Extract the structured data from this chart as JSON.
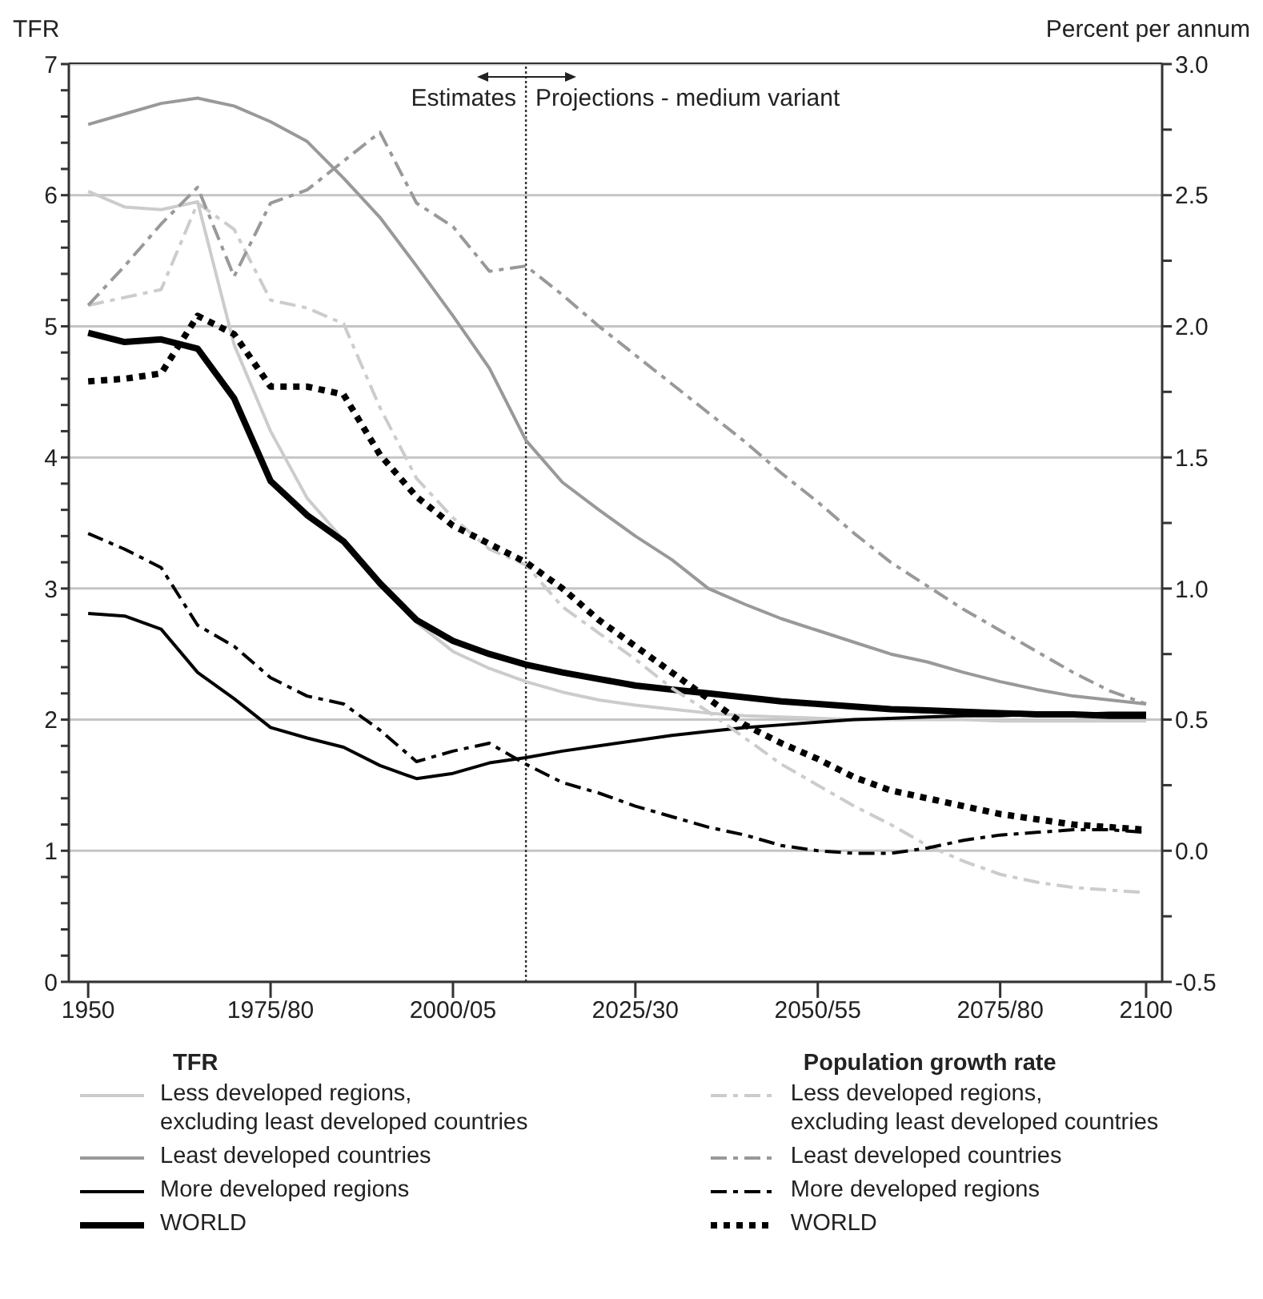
{
  "chart_data": {
    "type": "line",
    "ylabel": "TFR",
    "y2label": "Percent per annum",
    "legend_title": [
      "TFR",
      "Population growth rate"
    ],
    "annotations": [
      "Estimates",
      "Projections - medium variant"
    ],
    "categories": [
      "1950",
      null,
      null,
      null,
      null,
      "1975/80",
      null,
      null,
      null,
      null,
      "2000/05",
      null,
      null,
      null,
      null,
      "2025/30",
      null,
      null,
      null,
      null,
      "2050/55",
      null,
      null,
      null,
      null,
      "2075/80",
      null,
      null,
      null,
      "2100"
    ],
    "ylim": [
      0,
      7
    ],
    "yticks": [
      0,
      {
        "value": 0.2,
        "label": null
      },
      {
        "value": 0.4,
        "label": null
      },
      {
        "value": 0.6,
        "label": null
      },
      {
        "value": 0.8,
        "label": null
      },
      1,
      {
        "value": 1.2,
        "label": null
      },
      {
        "value": 1.4,
        "label": null
      },
      {
        "value": 1.6,
        "label": null
      },
      {
        "value": 1.8,
        "label": null
      },
      2,
      {
        "value": 2.2,
        "label": null
      },
      {
        "value": 2.4,
        "label": null
      },
      {
        "value": 2.6,
        "label": null
      },
      {
        "value": 2.8,
        "label": null
      },
      3,
      {
        "value": 3.2,
        "label": null
      },
      {
        "value": 3.4,
        "label": null
      },
      {
        "value": 3.6,
        "label": null
      },
      {
        "value": 3.8,
        "label": null
      },
      4,
      {
        "value": 4.2,
        "label": null
      },
      {
        "value": 4.4,
        "label": null
      },
      {
        "value": 4.6,
        "label": null
      },
      {
        "value": 4.8,
        "label": null
      },
      5,
      {
        "value": 5.2,
        "label": null
      },
      {
        "value": 5.4,
        "label": null
      },
      {
        "value": 5.6,
        "label": null
      },
      {
        "value": 5.8,
        "label": null
      },
      6,
      {
        "value": 6.2,
        "label": null
      },
      {
        "value": 6.4,
        "label": null
      },
      {
        "value": 6.6,
        "label": null
      },
      {
        "value": 6.8,
        "label": null
      },
      7
    ],
    "y2lim": [
      -0.5,
      3
    ],
    "y2ticks": [
      -0.5,
      {
        "value": -0.25,
        "label": null
      },
      {
        "value": 0,
        "label": "0.0"
      },
      {
        "value": 0.25,
        "label": null
      },
      0.5,
      {
        "value": 0.75,
        "label": null
      },
      {
        "value": 1,
        "label": "1.0"
      },
      {
        "value": 1.25,
        "label": null
      },
      1.5,
      {
        "value": 1.75,
        "label": null
      },
      {
        "value": 2,
        "label": "2.0"
      },
      {
        "value": 2.25,
        "label": null
      },
      2.5,
      {
        "value": 2.75,
        "label": null
      },
      {
        "value": 3,
        "label": "3.0"
      }
    ],
    "grid": "y",
    "legend": "bottom",
    "series": [
      {
        "name": "Less developed regions,\nexcluding least developed countries",
        "color": "#cccccc",
        "axis": "y",
        "line_style": "solid",
        "values": [
          6.03,
          5.91,
          5.89,
          5.95,
          4.86,
          4.2,
          3.69,
          3.37,
          3.04,
          2.74,
          2.52,
          2.39,
          2.29,
          2.21,
          2.15,
          2.11,
          2.08,
          2.05,
          2.03,
          2.02,
          2.01,
          2.0,
          2.0,
          2.0,
          2.0,
          1.99,
          1.99,
          1.99,
          1.99,
          1.99
        ]
      },
      {
        "name": "Least developed countries",
        "color": "#999999",
        "axis": "y",
        "line_style": "solid",
        "values": [
          6.54,
          6.62,
          6.7,
          6.74,
          6.68,
          6.56,
          6.41,
          6.13,
          5.83,
          5.46,
          5.08,
          4.68,
          4.13,
          3.81,
          3.6,
          3.4,
          3.22,
          3.0,
          2.88,
          2.77,
          2.68,
          2.59,
          2.5,
          2.44,
          2.36,
          2.29,
          2.23,
          2.18,
          2.15,
          2.12
        ]
      },
      {
        "name": "More developed regions",
        "color": "#000000",
        "axis": "y",
        "line_style": "solid",
        "values": [
          2.81,
          2.79,
          2.69,
          2.36,
          2.16,
          1.94,
          1.86,
          1.79,
          1.65,
          1.55,
          1.59,
          1.67,
          1.71,
          1.76,
          1.8,
          1.84,
          1.88,
          1.91,
          1.94,
          1.96,
          1.98,
          2.0,
          2.01,
          2.02,
          2.03,
          2.03,
          2.04,
          2.04,
          2.05,
          2.05
        ]
      },
      {
        "name": "WORLD",
        "color": "#000000",
        "axis": "y",
        "line_style": "solid",
        "values": [
          4.95,
          4.88,
          4.9,
          4.83,
          4.45,
          3.82,
          3.56,
          3.36,
          3.04,
          2.76,
          2.6,
          2.5,
          2.42,
          2.36,
          2.31,
          2.26,
          2.23,
          2.2,
          2.17,
          2.14,
          2.12,
          2.1,
          2.08,
          2.07,
          2.06,
          2.05,
          2.04,
          2.04,
          2.03,
          2.03
        ]
      },
      {
        "name": "Less developed regions,\nexcluding least developed countries",
        "color": "#cccccc",
        "axis": "y2",
        "line_style": "dashdot",
        "values": [
          2.08,
          2.11,
          2.14,
          2.47,
          2.37,
          2.1,
          2.07,
          2.01,
          1.69,
          1.42,
          1.27,
          1.15,
          1.09,
          0.93,
          0.83,
          0.73,
          0.62,
          0.53,
          0.43,
          0.33,
          0.25,
          0.17,
          0.1,
          0.02,
          -0.04,
          -0.09,
          -0.12,
          -0.14,
          -0.15,
          -0.16
        ]
      },
      {
        "name": "Least developed countries",
        "color": "#999999",
        "axis": "y2",
        "line_style": "dashdot",
        "values": [
          2.08,
          2.23,
          2.39,
          2.53,
          2.19,
          2.47,
          2.52,
          2.63,
          2.74,
          2.47,
          2.38,
          2.21,
          2.23,
          2.12,
          2.0,
          1.89,
          1.78,
          1.67,
          1.56,
          1.44,
          1.33,
          1.21,
          1.1,
          1.01,
          0.92,
          0.84,
          0.76,
          0.68,
          0.61,
          0.56
        ]
      },
      {
        "name": "More developed regions",
        "color": "#000000",
        "axis": "y2",
        "line_style": "dashdot",
        "values": [
          1.21,
          1.15,
          1.08,
          0.86,
          0.78,
          0.66,
          0.59,
          0.56,
          0.46,
          0.34,
          0.38,
          0.41,
          0.33,
          0.26,
          0.22,
          0.17,
          0.13,
          0.09,
          0.06,
          0.02,
          0.0,
          -0.01,
          -0.01,
          0.01,
          0.04,
          0.06,
          0.07,
          0.08,
          0.08,
          0.07
        ]
      },
      {
        "name": "WORLD",
        "color": "#000000",
        "axis": "y2",
        "line_style": "dotted",
        "values": [
          1.79,
          1.8,
          1.82,
          2.04,
          1.97,
          1.77,
          1.77,
          1.74,
          1.51,
          1.35,
          1.24,
          1.17,
          1.1,
          1.0,
          0.88,
          0.78,
          0.68,
          0.58,
          0.48,
          0.41,
          0.35,
          0.28,
          0.23,
          0.2,
          0.17,
          0.14,
          0.12,
          0.1,
          0.09,
          0.08
        ]
      }
    ]
  }
}
